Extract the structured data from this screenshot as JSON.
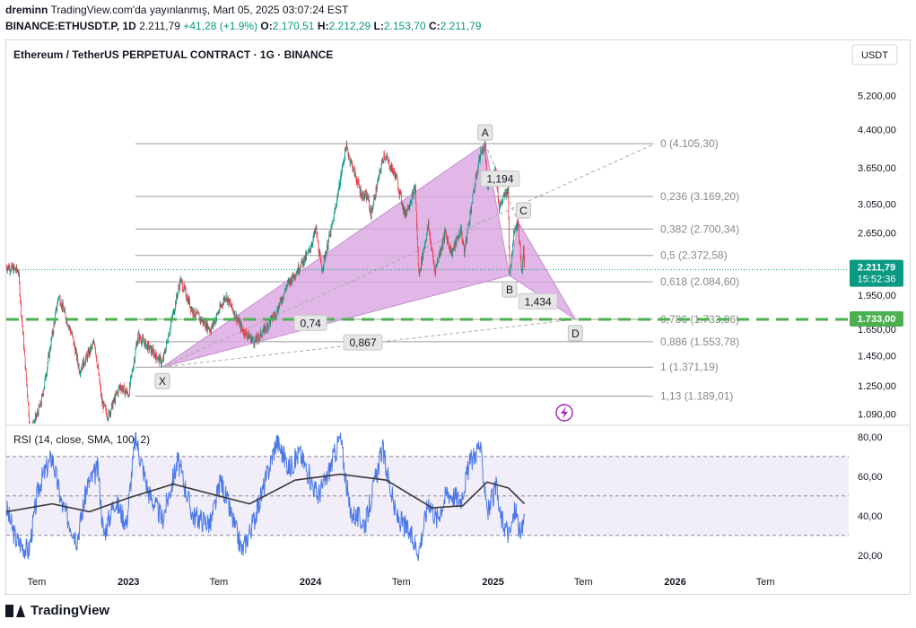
{
  "header": {
    "author": "dreminn",
    "published": "TradingView.com'da yayınlanmış, Mart 05, 2025 03:07:24 EST",
    "symbol": "BINANCE:ETHUSDT.P, 1D",
    "price": "2.211,79",
    "change": "+41,28 (+1.9%)",
    "o_label": "O:",
    "o_value": "2.170,51",
    "h_label": "H:",
    "h_value": "2.212,29",
    "l_label": "L:",
    "l_value": "2.153,70",
    "c_label": "C:",
    "c_value": "2.211,79"
  },
  "footer": {
    "brand": "TradingView"
  },
  "colors": {
    "up": "#089981",
    "down": "#f23645",
    "pattern": "#d8a5e0",
    "rsi": "#4a78e8",
    "rsi_ma": "#3a3a3a",
    "level": "#4caf50"
  },
  "chart_data": [
    {
      "type": "candlestick",
      "title": "Ethereum / TetherUS PERPETUAL CONTRACT · 1G · BINANCE",
      "currency_button": "USDT",
      "y_scale": "log",
      "ylim": [
        1040,
        6000
      ],
      "y_ticks": [
        {
          "value": 5200,
          "label": "5.200,00"
        },
        {
          "value": 4400,
          "label": "4.400,00"
        },
        {
          "value": 3650,
          "label": "3.650,00"
        },
        {
          "value": 3050,
          "label": "3.050,00"
        },
        {
          "value": 2650,
          "label": "2.650,00"
        },
        {
          "value": 1950,
          "label": "1.950,00"
        },
        {
          "value": 1650,
          "label": "1.650,00"
        },
        {
          "value": 1450,
          "label": "1.450,00"
        },
        {
          "value": 1250,
          "label": "1.250,00"
        },
        {
          "value": 1090,
          "label": "1.090,00"
        }
      ],
      "xlim": [
        "2022-05-01",
        "2026-12-15"
      ],
      "x_ticks": [
        {
          "date": "2022-07-01",
          "label": "Tem"
        },
        {
          "date": "2023-01-01",
          "label": "2023"
        },
        {
          "date": "2023-07-01",
          "label": "Tem"
        },
        {
          "date": "2024-01-01",
          "label": "2024"
        },
        {
          "date": "2024-07-01",
          "label": "Tem"
        },
        {
          "date": "2025-01-01",
          "label": "2025"
        },
        {
          "date": "2025-07-01",
          "label": "Tem"
        },
        {
          "date": "2026-01-01",
          "label": "2026"
        },
        {
          "date": "2026-07-01",
          "label": "Tem"
        }
      ],
      "price_path": [
        [
          "2022-05-01",
          2250
        ],
        [
          "2022-05-25",
          2200
        ],
        [
          "2022-06-15",
          1100
        ],
        [
          "2022-06-18",
          990
        ],
        [
          "2022-07-10",
          1150
        ],
        [
          "2022-08-14",
          1950
        ],
        [
          "2022-09-10",
          1600
        ],
        [
          "2022-09-25",
          1350
        ],
        [
          "2022-10-25",
          1550
        ],
        [
          "2022-11-09",
          1150
        ],
        [
          "2022-11-21",
          1080
        ],
        [
          "2022-12-15",
          1250
        ],
        [
          "2023-01-01",
          1200
        ],
        [
          "2023-01-20",
          1600
        ],
        [
          "2023-03-10",
          1400
        ],
        [
          "2023-04-15",
          2100
        ],
        [
          "2023-05-10",
          1800
        ],
        [
          "2023-06-15",
          1650
        ],
        [
          "2023-07-15",
          1950
        ],
        [
          "2023-08-17",
          1650
        ],
        [
          "2023-09-11",
          1550
        ],
        [
          "2023-10-01",
          1650
        ],
        [
          "2023-10-25",
          1800
        ],
        [
          "2023-11-15",
          2050
        ],
        [
          "2023-12-28",
          2400
        ],
        [
          "2024-01-12",
          2700
        ],
        [
          "2024-01-23",
          2200
        ],
        [
          "2024-02-15",
          2800
        ],
        [
          "2024-03-12",
          4050
        ],
        [
          "2024-04-12",
          3200
        ],
        [
          "2024-04-25",
          3150
        ],
        [
          "2024-05-01",
          2900
        ],
        [
          "2024-05-27",
          3900
        ],
        [
          "2024-06-20",
          3500
        ],
        [
          "2024-07-08",
          2900
        ],
        [
          "2024-07-29",
          3300
        ],
        [
          "2024-08-05",
          2150
        ],
        [
          "2024-08-24",
          2750
        ],
        [
          "2024-09-06",
          2200
        ],
        [
          "2024-09-27",
          2650
        ],
        [
          "2024-10-10",
          2400
        ],
        [
          "2024-10-29",
          2700
        ],
        [
          "2024-11-04",
          2400
        ],
        [
          "2024-11-20",
          3100
        ],
        [
          "2024-12-06",
          3900
        ],
        [
          "2024-12-16",
          4050
        ],
        [
          "2024-12-20",
          3300
        ],
        [
          "2025-01-06",
          3650
        ],
        [
          "2025-01-13",
          3000
        ],
        [
          "2025-01-31",
          3300
        ],
        [
          "2025-02-03",
          2150
        ],
        [
          "2025-02-12",
          2700
        ],
        [
          "2025-02-20",
          2800
        ],
        [
          "2025-02-28",
          2150
        ],
        [
          "2025-03-03",
          2450
        ],
        [
          "2025-03-05",
          2211.79
        ]
      ],
      "fib_levels": [
        {
          "ratio": "0",
          "value": 4105.3,
          "label": "0 (4.105,30)"
        },
        {
          "ratio": "0,236",
          "value": 3169.2,
          "label": "0,236 (3.169,20)"
        },
        {
          "ratio": "0,382",
          "value": 2700.34,
          "label": "0,382 (2.700,34)"
        },
        {
          "ratio": "0,5",
          "value": 2372.58,
          "label": "0,5 (2.372,58)"
        },
        {
          "ratio": "0,618",
          "value": 2084.6,
          "label": "0,618 (2.084,60)"
        },
        {
          "ratio": "0,786",
          "value": 1733.86,
          "label": "0,786 (1.733,86)"
        },
        {
          "ratio": "0,886",
          "value": 1553.78,
          "label": "0,886 (1.553,78)"
        },
        {
          "ratio": "1",
          "value": 1371.19,
          "label": "1 (1.371,19)"
        },
        {
          "ratio": "1,13",
          "value": 1189.01,
          "label": "1,13 (1.189,01)"
        }
      ],
      "fib_start_date": "2023-01-15",
      "harmonic_points": [
        {
          "label": "X",
          "date": "2023-03-10",
          "value": 1371.19
        },
        {
          "label": "A",
          "date": "2024-12-16",
          "value": 4105.3
        },
        {
          "label": "B",
          "date": "2025-02-03",
          "value": 2150
        },
        {
          "label": "C",
          "date": "2025-02-20",
          "value": 2800
        },
        {
          "label": "D",
          "date": "2025-06-15",
          "value": 1733.86
        }
      ],
      "harmonic_ratios": [
        {
          "label": "0,74",
          "date": "2024-01-01",
          "value": 1700
        },
        {
          "label": "0,867",
          "date": "2024-04-15",
          "value": 1545
        },
        {
          "label": "1,434",
          "date": "2025-04-01",
          "value": 1890
        },
        {
          "label": "1,194",
          "date": "2025-01-15",
          "value": 3450
        }
      ],
      "horizontal_line": {
        "value": 1733,
        "label": "1.733,00"
      },
      "last_price": {
        "value": 2211.79,
        "label": "2.211,79",
        "countdown": "15:52:36"
      }
    },
    {
      "type": "line",
      "title": "RSI (14, close, SMA, 100, 2)",
      "ylim": [
        14,
        84
      ],
      "y_ticks": [
        {
          "value": 80,
          "label": "80,00"
        },
        {
          "value": 60,
          "label": "60,00"
        },
        {
          "value": 40,
          "label": "40,00"
        },
        {
          "value": 20,
          "label": "20,00"
        }
      ],
      "bands": {
        "upper": 70,
        "middle": 50,
        "lower": 30
      },
      "rsi_path": [
        [
          "2022-05-01",
          44
        ],
        [
          "2022-05-20",
          28
        ],
        [
          "2022-06-15",
          22
        ],
        [
          "2022-07-05",
          55
        ],
        [
          "2022-08-01",
          70
        ],
        [
          "2022-08-20",
          46
        ],
        [
          "2022-09-20",
          28
        ],
        [
          "2022-10-10",
          55
        ],
        [
          "2022-11-01",
          64
        ],
        [
          "2022-11-12",
          30
        ],
        [
          "2022-12-05",
          48
        ],
        [
          "2022-12-28",
          36
        ],
        [
          "2023-01-15",
          80
        ],
        [
          "2023-02-10",
          52
        ],
        [
          "2023-03-10",
          38
        ],
        [
          "2023-04-10",
          68
        ],
        [
          "2023-05-10",
          40
        ],
        [
          "2023-06-15",
          36
        ],
        [
          "2023-07-05",
          58
        ],
        [
          "2023-08-17",
          22
        ],
        [
          "2023-09-10",
          38
        ],
        [
          "2023-10-01",
          56
        ],
        [
          "2023-10-25",
          78
        ],
        [
          "2023-11-20",
          64
        ],
        [
          "2023-12-10",
          72
        ],
        [
          "2024-01-15",
          50
        ],
        [
          "2024-02-01",
          58
        ],
        [
          "2024-03-01",
          80
        ],
        [
          "2024-03-20",
          42
        ],
        [
          "2024-04-20",
          36
        ],
        [
          "2024-05-24",
          74
        ],
        [
          "2024-06-20",
          40
        ],
        [
          "2024-07-10",
          34
        ],
        [
          "2024-08-05",
          22
        ],
        [
          "2024-08-25",
          48
        ],
        [
          "2024-09-10",
          38
        ],
        [
          "2024-10-01",
          52
        ],
        [
          "2024-10-28",
          48
        ],
        [
          "2024-11-15",
          66
        ],
        [
          "2024-12-05",
          76
        ],
        [
          "2024-12-22",
          42
        ],
        [
          "2025-01-07",
          54
        ],
        [
          "2025-01-15",
          40
        ],
        [
          "2025-02-03",
          30
        ],
        [
          "2025-02-15",
          44
        ],
        [
          "2025-02-26",
          28
        ],
        [
          "2025-03-03",
          38
        ],
        [
          "2025-03-05",
          42
        ]
      ],
      "rsi_ma_path": [
        [
          "2022-05-01",
          42
        ],
        [
          "2022-08-01",
          46
        ],
        [
          "2022-10-15",
          42
        ],
        [
          "2023-01-01",
          49
        ],
        [
          "2023-04-01",
          56
        ],
        [
          "2023-07-01",
          50
        ],
        [
          "2023-09-01",
          46
        ],
        [
          "2023-12-01",
          58
        ],
        [
          "2024-03-01",
          61
        ],
        [
          "2024-06-01",
          58
        ],
        [
          "2024-09-01",
          44
        ],
        [
          "2024-11-01",
          45
        ],
        [
          "2024-12-20",
          57
        ],
        [
          "2025-02-01",
          54
        ],
        [
          "2025-03-05",
          46
        ]
      ]
    }
  ]
}
